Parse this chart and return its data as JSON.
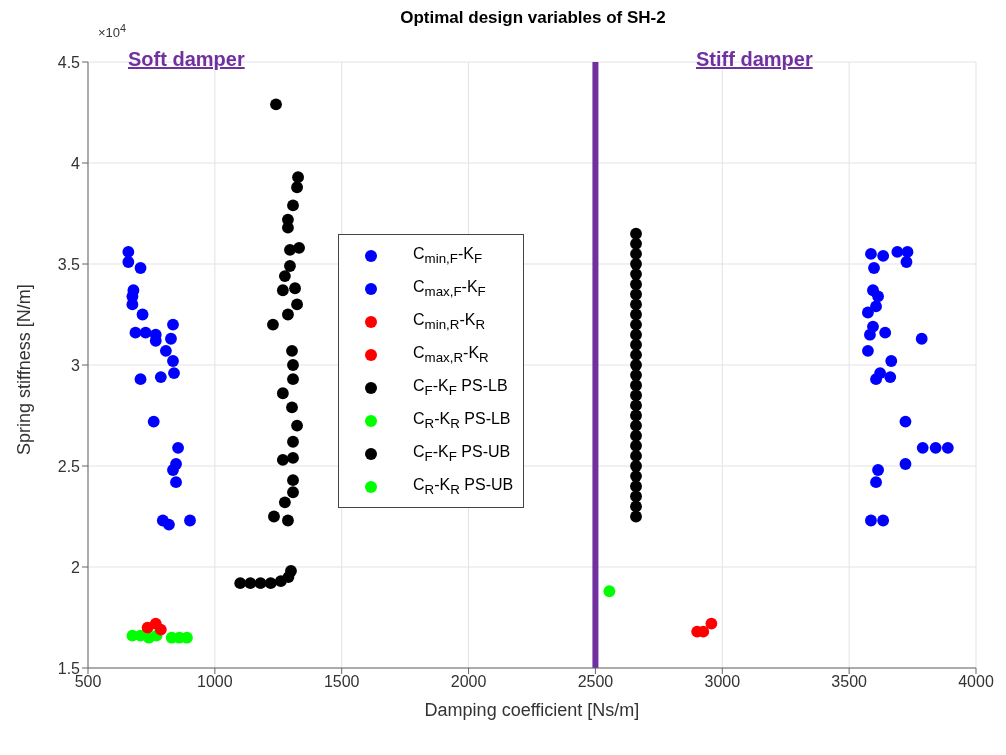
{
  "chart_data": {
    "type": "scatter",
    "title": "Optimal design variables of SH-2",
    "xlabel": "Damping coefficient [Ns/m]",
    "ylabel": "Spring stiffness [N/m]",
    "annotations": [
      "×10$^{4}$",
      "Soft damper",
      "Stiff damper"
    ],
    "xlim": [
      500,
      4000
    ],
    "xticks": [
      500,
      1000,
      1500,
      2000,
      2500,
      3000,
      3500,
      4000
    ],
    "ylim": [
      1.5,
      4.5
    ],
    "yticks": [
      1.5,
      2,
      2.5,
      3,
      3.5,
      4,
      4.5
    ],
    "grid": true,
    "legend": "center",
    "marker": "circle",
    "ref_lines": [
      {
        "axis": "x",
        "value": 2500,
        "color": "#7030a0"
      }
    ],
    "series": [
      {
        "name": "C$_{min,F}$-K$_{F}$",
        "color": "#0000ff",
        "x": [
          659,
          659,
          707,
          679,
          675,
          675,
          707,
          715,
          687,
          727,
          767,
          835,
          827,
          767,
          807,
          835,
          707,
          787,
          839,
          759,
          855,
          847,
          835,
          847,
          795,
          819,
          902
        ],
        "values": [
          3.56,
          3.51,
          3.48,
          3.37,
          3.34,
          3.3,
          null,
          3.25,
          3.16,
          3.16,
          3.15,
          3.2,
          3.13,
          3.12,
          3.07,
          3.02,
          2.93,
          2.94,
          2.96,
          2.72,
          2.59,
          2.51,
          2.48,
          2.42,
          2.23,
          2.21,
          2.23
        ]
      },
      {
        "name": "C$_{max,F}$-K$_{F}$",
        "color": "#0000ff",
        "x": [
          3586,
          3634,
          3690,
          3730,
          3726,
          3598,
          3594,
          3614,
          3606,
          3574,
          3594,
          3582,
          3642,
          3574,
          3786,
          3666,
          3622,
          3662,
          3606,
          3722,
          3790,
          3841,
          3889,
          3722,
          3614,
          3606,
          3586,
          3634
        ],
        "values": [
          3.55,
          3.54,
          3.56,
          3.56,
          3.51,
          3.48,
          3.37,
          3.34,
          3.29,
          3.26,
          3.19,
          3.15,
          3.16,
          3.07,
          3.13,
          3.02,
          2.96,
          2.94,
          2.93,
          2.72,
          2.59,
          2.59,
          2.59,
          2.51,
          2.48,
          2.42,
          2.23,
          2.23
        ]
      },
      {
        "name": "C$_{min,R}$-K$_{R}$",
        "color": "#ff0000",
        "x": [
          735,
          755,
          767,
          787
        ],
        "values": [
          1.7,
          null,
          1.72,
          1.69
        ]
      },
      {
        "name": "C$_{max,R}$-K$_{R}$",
        "color": "#ff0000",
        "x": [
          2901,
          2925,
          2949,
          2957
        ],
        "values": [
          1.68,
          1.68,
          null,
          1.72
        ]
      },
      {
        "name": "C$_{F}$-K$_{F}$ PS-LB",
        "color": "#000000",
        "x": [
          1241,
          1328,
          1324,
          1308,
          1288,
          1288,
          1332,
          1296,
          1296,
          1276,
          1268,
          1316,
          1324,
          1288,
          1229,
          1304,
          1308,
          1308,
          1268,
          1304,
          1324,
          1308,
          1268,
          1308,
          1308,
          1308,
          1276,
          1233,
          1288,
          1100,
          1140,
          1180,
          1220,
          1260,
          1290,
          1300
        ],
        "values": [
          4.29,
          3.93,
          3.88,
          3.79,
          3.72,
          3.68,
          3.58,
          3.57,
          3.49,
          3.44,
          3.37,
          3.38,
          3.3,
          3.25,
          3.2,
          3.07,
          3.0,
          2.93,
          2.86,
          2.79,
          2.7,
          2.62,
          2.53,
          2.54,
          2.43,
          2.37,
          2.32,
          2.25,
          2.23,
          1.92,
          1.92,
          1.92,
          1.92,
          1.93,
          1.95,
          1.98
        ]
      },
      {
        "name": "C$_{R}$-K$_{R}$ PS-LB",
        "color": "#00ff00",
        "x": [
          675,
          707,
          740,
          770,
          800,
          830,
          860,
          890
        ],
        "values": [
          1.66,
          1.66,
          1.65,
          1.66,
          null,
          1.65,
          1.65,
          1.65
        ]
      },
      {
        "name": "C$_{F}$-K$_{F}$ PS-UB",
        "color": "#000000",
        "x": [
          2660,
          2660,
          2660,
          2660,
          2660,
          2660,
          2660,
          2660,
          2660,
          2660,
          2660,
          2660,
          2660,
          2660,
          2660,
          2660,
          2660,
          2660,
          2660,
          2660,
          2660,
          2660,
          2660,
          2660,
          2660,
          2660,
          2660,
          2660,
          2660
        ],
        "values": [
          2.25,
          2.3,
          2.35,
          2.4,
          2.45,
          2.5,
          2.55,
          2.6,
          2.65,
          2.7,
          2.75,
          2.8,
          2.85,
          2.9,
          2.95,
          3.0,
          3.05,
          3.1,
          3.15,
          3.2,
          3.25,
          3.3,
          3.35,
          3.4,
          3.45,
          3.5,
          3.55,
          3.6,
          3.65
        ]
      },
      {
        "name": "C$_{R}$-K$_{R}$ PS-UB",
        "color": "#00ff00",
        "x": [
          2555
        ],
        "values": [
          1.88
        ]
      }
    ]
  }
}
